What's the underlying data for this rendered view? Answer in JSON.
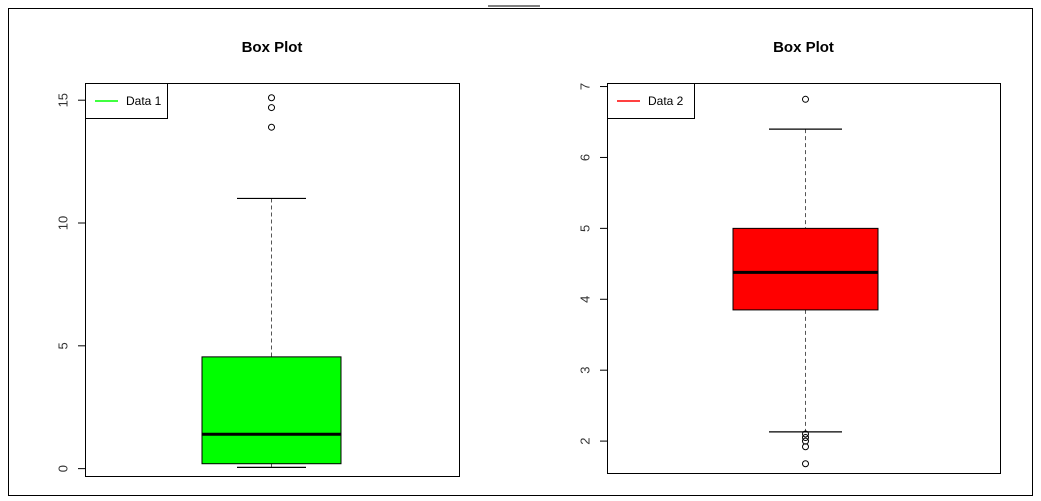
{
  "chart_data": [
    {
      "type": "box",
      "title": "Box Plot",
      "legend": {
        "label": "Data 1",
        "position": "top-left",
        "color": "#00ff00"
      },
      "color": "#00ff00",
      "ylim": [
        -0.3,
        15.7
      ],
      "y_ticks": [
        0,
        5,
        10,
        15
      ],
      "box": {
        "whisker_low": 0.05,
        "q1": 0.2,
        "median": 1.4,
        "q3": 4.55,
        "whisker_high": 11.0
      },
      "outliers": [
        13.9,
        14.7,
        15.1
      ]
    },
    {
      "type": "box",
      "title": "Box Plot",
      "legend": {
        "label": "Data 2",
        "position": "top-left",
        "color": "#ff0000"
      },
      "color": "#ff0000",
      "ylim": [
        1.55,
        7.05
      ],
      "y_ticks": [
        2,
        3,
        4,
        5,
        6,
        7
      ],
      "box": {
        "whisker_low": 2.13,
        "q1": 3.85,
        "median": 4.38,
        "q3": 5.0,
        "whisker_high": 6.4
      },
      "outliers": [
        6.82,
        2.1,
        2.05,
        2.0,
        1.92,
        1.68
      ]
    }
  ]
}
